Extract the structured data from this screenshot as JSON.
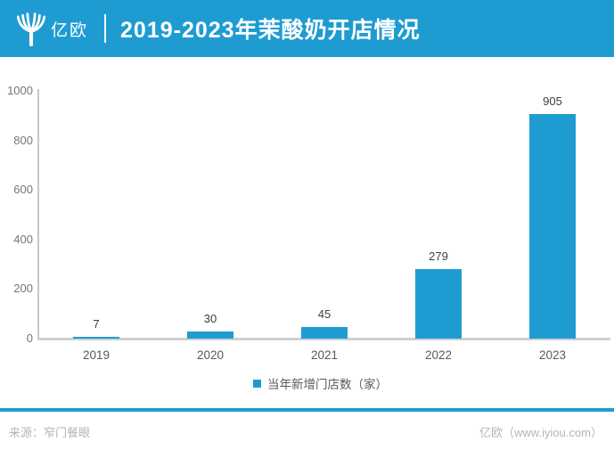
{
  "header": {
    "logo_text": "亿欧",
    "title": "2019-2023年茉酸奶开店情况"
  },
  "chart_data": {
    "type": "bar",
    "title": "2019-2023年茉酸奶开店情况",
    "categories": [
      "2019",
      "2020",
      "2021",
      "2022",
      "2023"
    ],
    "values": [
      7,
      30,
      45,
      279,
      905
    ],
    "series_name": "当年新增门店数（家）",
    "xlabel": "",
    "ylabel": "",
    "ylim": [
      0,
      1000
    ],
    "yticks": [
      0,
      200,
      400,
      600,
      800,
      1000
    ],
    "grid": false,
    "legend_position": "bottom",
    "bar_color": "#1E9CD2"
  },
  "legend": {
    "label": "当年新增门店数（家）"
  },
  "footer": {
    "source": "来源：窄门餐眼",
    "credit": "亿欧（www.iyiou.com）"
  },
  "colors": {
    "brand_blue": "#1E9CD2",
    "axis_line": "#C7C7C7",
    "tick_text": "#757575",
    "value_text": "#3D3D3D",
    "xlabel_text": "#595959",
    "footer_text": "#B5B5B5"
  }
}
